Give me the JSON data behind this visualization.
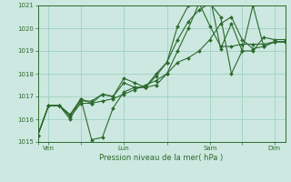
{
  "background_color": "#cce8e0",
  "grid_color": "#99ccbb",
  "line_color": "#2d6a2d",
  "marker_color": "#2d6a2d",
  "xlabel": "Pression niveau de la mer( hPa )",
  "ylim": [
    1015,
    1021
  ],
  "yticks": [
    1015,
    1016,
    1017,
    1018,
    1019,
    1020,
    1021
  ],
  "xtick_labels": [
    "",
    "Ven",
    "",
    "Lun",
    "",
    "Sam",
    "",
    "Dim"
  ],
  "xtick_positions": [
    0,
    1,
    4,
    8,
    12,
    16,
    19,
    22
  ],
  "xlim": [
    0,
    23
  ],
  "series": [
    [
      1015.3,
      1016.6,
      1016.6,
      1016.1,
      1016.7,
      1016.7,
      1016.8,
      1016.9,
      1017.1,
      1017.3,
      1017.5,
      1017.7,
      1018.0,
      1018.5,
      1018.7,
      1019.0,
      1019.5,
      1020.2,
      1020.5,
      1019.5,
      1019.1,
      1019.2,
      1019.4,
      1019.4
    ],
    [
      1015.3,
      1016.6,
      1016.6,
      1016.2,
      1016.8,
      1016.8,
      1017.1,
      1017.0,
      1017.8,
      1017.6,
      1017.4,
      1018.0,
      1018.5,
      1019.5,
      1020.3,
      1020.8,
      1021.1,
      1020.5,
      1018.0,
      1019.0,
      1021.0,
      1019.2,
      1019.4,
      1019.4
    ],
    [
      1015.3,
      1016.6,
      1016.6,
      1016.2,
      1016.9,
      1016.7,
      1017.1,
      1017.0,
      1017.6,
      1017.4,
      1017.4,
      1017.9,
      1018.5,
      1020.1,
      1021.0,
      1021.3,
      1021.4,
      1019.1,
      1020.2,
      1019.0,
      1019.0,
      1019.6,
      1019.5,
      1019.5
    ],
    [
      1015.3,
      1016.6,
      1016.6,
      1016.0,
      1016.9,
      1015.1,
      1015.2,
      1016.5,
      1017.2,
      1017.4,
      1017.4,
      1017.5,
      1018.0,
      1019.0,
      1020.0,
      1021.1,
      1020.1,
      1019.2,
      1019.2,
      1019.3,
      1019.3,
      1019.3,
      1019.4,
      1019.4
    ]
  ]
}
